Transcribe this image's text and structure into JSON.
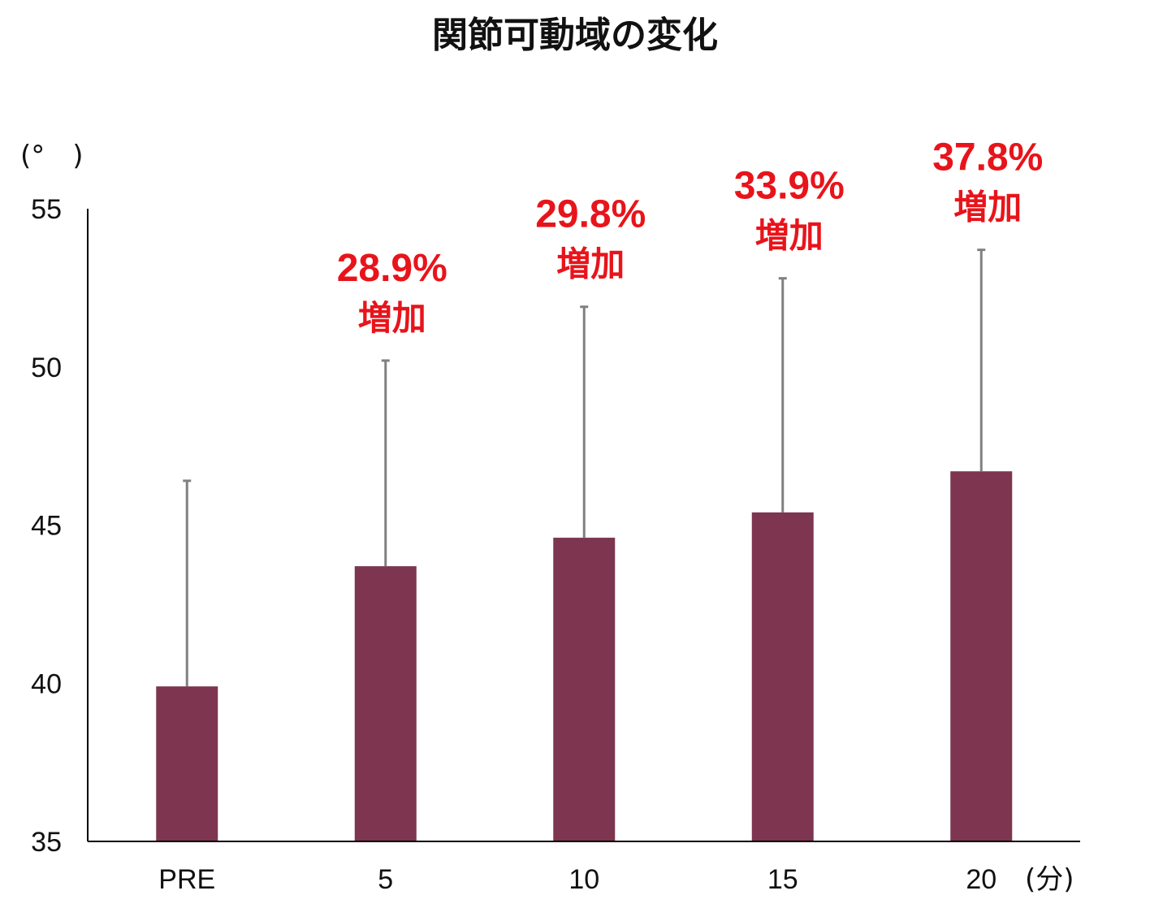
{
  "chart_data": {
    "type": "bar",
    "title": "関節可動域の変化",
    "ylabel": "(°　)",
    "xlabel": "(分)",
    "categories": [
      "PRE",
      "5",
      "10",
      "15",
      "20"
    ],
    "values": [
      39.9,
      43.7,
      44.6,
      45.4,
      46.7
    ],
    "error_upper": [
      46.4,
      50.2,
      51.9,
      52.8,
      53.7
    ],
    "ylim": [
      35,
      55
    ],
    "yticks": [
      "35",
      "40",
      "45",
      "50",
      "55"
    ],
    "annotations": [
      {
        "category": "5",
        "percent": "28.9%",
        "text": "増加"
      },
      {
        "category": "10",
        "percent": "29.8%",
        "text": "増加"
      },
      {
        "category": "15",
        "percent": "33.9%",
        "text": "増加"
      },
      {
        "category": "20",
        "percent": "37.8%",
        "text": "増加"
      }
    ],
    "grid": false,
    "legend": "none",
    "colors": {
      "bar": "#7d3550",
      "error_bar": "#808080",
      "axis": "#000000",
      "annotation": "#e8141b"
    }
  }
}
